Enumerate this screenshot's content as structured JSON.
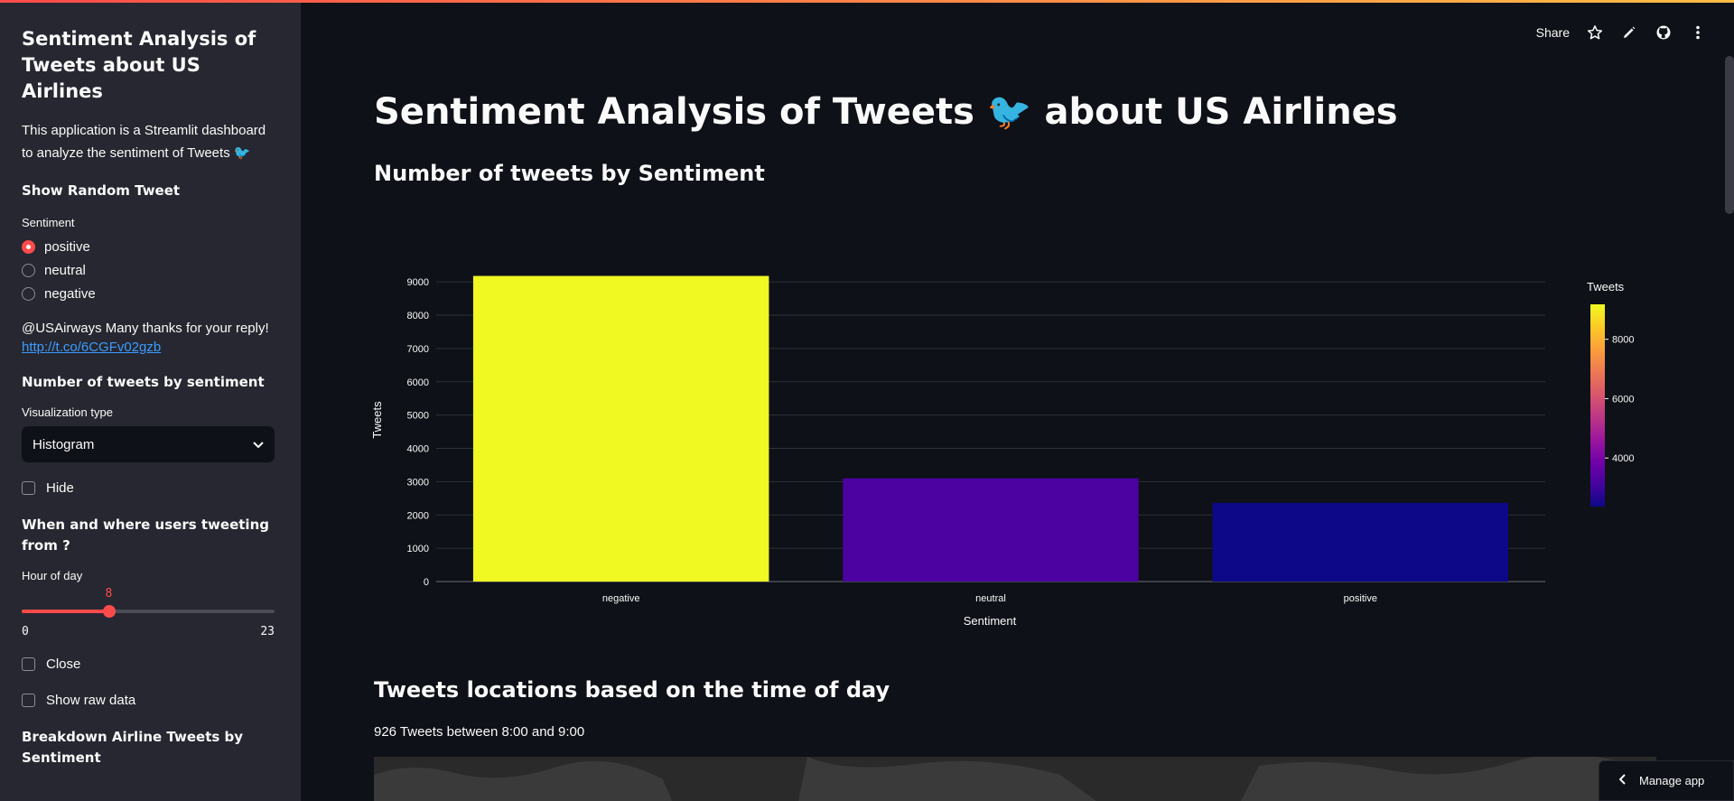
{
  "sidebar": {
    "title": "Sentiment Analysis of Tweets about US Airlines",
    "description": "This application is a Streamlit dashboard to analyze the sentiment of Tweets 🐦",
    "random_tweet": {
      "header": "Show Random Tweet",
      "sentiment_label": "Sentiment",
      "options": [
        "positive",
        "neutral",
        "negative"
      ],
      "selected": "positive",
      "tweet_text": "@USAirways Many thanks for your reply!",
      "tweet_link": "http://t.co/6CGFv02gzb"
    },
    "count_section": {
      "header": "Number of tweets by sentiment",
      "viz_label": "Visualization type",
      "viz_value": "Histogram",
      "hide_label": "Hide"
    },
    "where_section": {
      "header": "When and where users tweeting from ?",
      "hour_label": "Hour of day",
      "hour_value": "8",
      "hour_min": "0",
      "hour_max": "23",
      "hour_fraction": 0.348,
      "close_label": "Close",
      "raw_label": "Show raw data"
    },
    "breakdown_header": "Breakdown Airline Tweets by Sentiment"
  },
  "toolbar": {
    "share_label": "Share",
    "icons": [
      "star-icon",
      "pencil-icon",
      "github-icon",
      "more-vert-icon"
    ]
  },
  "main": {
    "page_title": "Sentiment Analysis of Tweets 🐦 about US Airlines",
    "section1_title": "Number of tweets by Sentiment",
    "section2_title": "Tweets locations based on the time of day",
    "caption": "926 Tweets between 8:00 and 9:00",
    "manage_app": "Manage app"
  },
  "chart_data": {
    "type": "bar",
    "categories": [
      "negative",
      "neutral",
      "positive"
    ],
    "values": [
      9178,
      3099,
      2363
    ],
    "colors": [
      "#f0f921",
      "#4c02a1",
      "#0d0887"
    ],
    "xlabel": "Sentiment",
    "ylabel": "Tweets",
    "ylim": [
      0,
      9600
    ],
    "yticks": [
      0,
      1000,
      2000,
      3000,
      4000,
      5000,
      6000,
      7000,
      8000,
      9000
    ],
    "grid": true,
    "colorbar": {
      "title": "Tweets",
      "ticks": [
        4000,
        6000,
        8000
      ],
      "range": [
        2363,
        9178
      ],
      "colorscale": [
        "#0d0887",
        "#46039f",
        "#7201a8",
        "#9c179e",
        "#bd3786",
        "#d8576b",
        "#ed7953",
        "#fb9f3a",
        "#fdca26",
        "#f0f921"
      ]
    }
  }
}
